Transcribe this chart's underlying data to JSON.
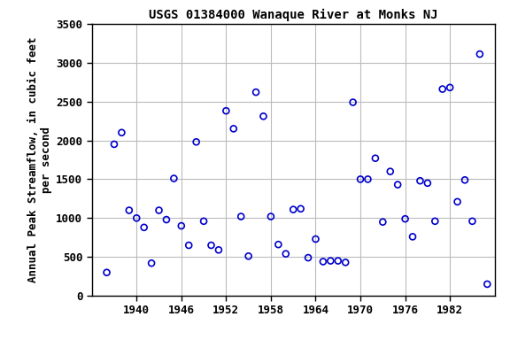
{
  "title": "USGS 01384000 Wanaque River at Monks NJ",
  "xlabel": "",
  "ylabel": "Annual Peak Streamflow, in cubic feet\nper second",
  "xlim": [
    1934,
    1988
  ],
  "ylim": [
    0,
    3500
  ],
  "xticks": [
    1940,
    1946,
    1952,
    1958,
    1964,
    1970,
    1976,
    1982
  ],
  "yticks": [
    0,
    500,
    1000,
    1500,
    2000,
    2500,
    3000,
    3500
  ],
  "data": [
    [
      1936,
      300
    ],
    [
      1937,
      1950
    ],
    [
      1938,
      2100
    ],
    [
      1939,
      1100
    ],
    [
      1940,
      1000
    ],
    [
      1941,
      880
    ],
    [
      1942,
      420
    ],
    [
      1943,
      1100
    ],
    [
      1944,
      980
    ],
    [
      1945,
      1510
    ],
    [
      1946,
      900
    ],
    [
      1947,
      650
    ],
    [
      1948,
      1980
    ],
    [
      1949,
      960
    ],
    [
      1950,
      650
    ],
    [
      1951,
      590
    ],
    [
      1952,
      2380
    ],
    [
      1953,
      2150
    ],
    [
      1954,
      1020
    ],
    [
      1955,
      510
    ],
    [
      1956,
      2620
    ],
    [
      1957,
      2310
    ],
    [
      1958,
      1020
    ],
    [
      1959,
      660
    ],
    [
      1960,
      540
    ],
    [
      1961,
      1110
    ],
    [
      1962,
      1120
    ],
    [
      1963,
      490
    ],
    [
      1964,
      730
    ],
    [
      1965,
      440
    ],
    [
      1966,
      450
    ],
    [
      1967,
      450
    ],
    [
      1968,
      430
    ],
    [
      1969,
      2490
    ],
    [
      1970,
      1500
    ],
    [
      1971,
      1500
    ],
    [
      1972,
      1770
    ],
    [
      1973,
      950
    ],
    [
      1974,
      1600
    ],
    [
      1975,
      1430
    ],
    [
      1976,
      990
    ],
    [
      1977,
      760
    ],
    [
      1978,
      1480
    ],
    [
      1979,
      1450
    ],
    [
      1980,
      960
    ],
    [
      1981,
      2660
    ],
    [
      1982,
      2680
    ],
    [
      1983,
      1210
    ],
    [
      1984,
      1490
    ],
    [
      1985,
      960
    ],
    [
      1986,
      3110
    ],
    [
      1987,
      150
    ]
  ],
  "marker_color": "#0000cc",
  "marker_facecolor": "none",
  "marker_size": 5,
  "marker_linewidth": 1.2,
  "grid_color": "#bbbbbb",
  "bg_color": "#ffffff",
  "title_fontsize": 10,
  "label_fontsize": 9,
  "tick_fontsize": 9,
  "font_family": "monospace"
}
